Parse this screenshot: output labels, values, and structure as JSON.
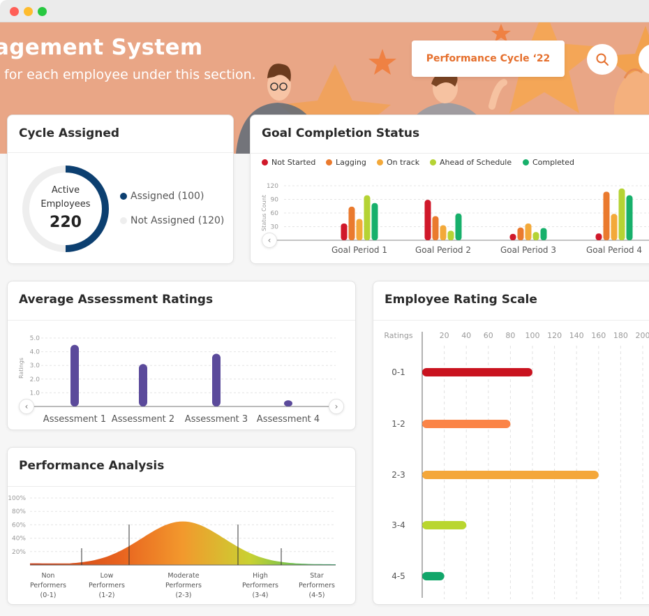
{
  "window": {
    "controls": [
      "close",
      "minimize",
      "maximize"
    ],
    "colors": {
      "close": "#ff5f57",
      "minimize": "#febc2e",
      "maximize": "#28c840"
    }
  },
  "header": {
    "title": "agement System",
    "subtitle": "for each employee under this section.",
    "cycle_label": "Performance Cycle ‘22",
    "search_icon": "search-icon",
    "accent": "#e5702e",
    "bg": "#e9a686"
  },
  "cycle_assigned": {
    "title": "Cycle Assigned",
    "center_label_1": "Active",
    "center_label_2": "Employees",
    "center_value": "220",
    "legend": [
      {
        "label": "Assigned (100)",
        "color": "#0c3f70"
      },
      {
        "label": "Not Assigned (120)",
        "color": "#eeeeee"
      }
    ]
  },
  "goal_completion": {
    "title": "Goal Completion Status",
    "legend": [
      {
        "label": "Not Started",
        "color": "#d0182a"
      },
      {
        "label": "Lagging",
        "color": "#ea7a2e"
      },
      {
        "label": "On track",
        "color": "#f3a93a"
      },
      {
        "label": "Ahead of Schedule",
        "color": "#b5d334"
      },
      {
        "label": "Completed",
        "color": "#17b06b"
      }
    ]
  },
  "avg_assessment": {
    "title": "Average Assessment Ratings"
  },
  "performance_analysis": {
    "title": "Performance Analysis",
    "y_ticks": [
      "100%",
      "80%",
      "60%",
      "40%",
      "20%"
    ],
    "groups": [
      {
        "line1": "Non",
        "line2": "Performers",
        "line3": "(0-1)"
      },
      {
        "line1": "Low",
        "line2": "Performers",
        "line3": "(1-2)"
      },
      {
        "line1": "Moderate",
        "line2": "Performers",
        "line3": "(2-3)"
      },
      {
        "line1": "High",
        "line2": "Performers",
        "line3": "(3-4)"
      },
      {
        "line1": "Star",
        "line2": "Performers",
        "line3": "(4-5)"
      }
    ]
  },
  "rating_scale": {
    "title": "Employee Rating Scale"
  },
  "chart_data": [
    {
      "id": "goal",
      "type": "bar",
      "ylabel": "Status Count",
      "ylim": [
        0,
        120
      ],
      "yticks": [
        120,
        90,
        60,
        30
      ],
      "categories": [
        "Goal Period 1",
        "Goal Period 2",
        "Goal Period 3",
        "Goal Period 4"
      ],
      "series": [
        {
          "name": "Not Started",
          "color": "#d0182a",
          "values": [
            37,
            89,
            14,
            15
          ]
        },
        {
          "name": "Lagging",
          "color": "#ea7a2e",
          "values": [
            74,
            53,
            28,
            107
          ]
        },
        {
          "name": "On track",
          "color": "#f3a93a",
          "values": [
            47,
            33,
            37,
            58
          ]
        },
        {
          "name": "Ahead of Schedule",
          "color": "#b5d334",
          "values": [
            99,
            21,
            18,
            114
          ]
        },
        {
          "name": "Completed",
          "color": "#17b06b",
          "values": [
            82,
            59,
            27,
            99
          ]
        }
      ],
      "grid": true
    },
    {
      "id": "assessment",
      "type": "bar",
      "ylabel": "Ratings",
      "ylim": [
        0,
        5
      ],
      "yticks": [
        "5.0",
        "4.0",
        "3.0",
        "2.0",
        "1.0"
      ],
      "categories": [
        "Assessment 1",
        "Assessment 2",
        "Assessment 3",
        "Assessment 4"
      ],
      "values": [
        4.5,
        3.1,
        3.85,
        0.45
      ],
      "color": "#5b4a9b",
      "grid": true
    },
    {
      "id": "performance",
      "type": "area",
      "ylim": [
        0,
        100
      ],
      "yticks": [
        "100%",
        "80%",
        "60%",
        "40%",
        "20%"
      ],
      "description_points": [
        [
          0,
          2
        ],
        [
          0.15,
          9
        ],
        [
          0.3,
          30
        ],
        [
          0.5,
          66
        ],
        [
          0.68,
          45
        ],
        [
          0.82,
          16
        ],
        [
          1,
          2
        ]
      ],
      "grid": true
    },
    {
      "id": "rating_scale",
      "type": "bar",
      "orientation": "horizontal",
      "header": "Ratings",
      "xlim": [
        0,
        200
      ],
      "xticks": [
        20,
        40,
        60,
        80,
        100,
        120,
        140,
        160,
        180,
        200
      ],
      "categories": [
        "0-1",
        "1-2",
        "2-3",
        "3-4",
        "4-5"
      ],
      "values": [
        100,
        80,
        160,
        40,
        20
      ],
      "colors": [
        "#c9131f",
        "#fb8447",
        "#f4a73a",
        "#b9d62f",
        "#11a66a"
      ],
      "grid": true
    }
  ]
}
